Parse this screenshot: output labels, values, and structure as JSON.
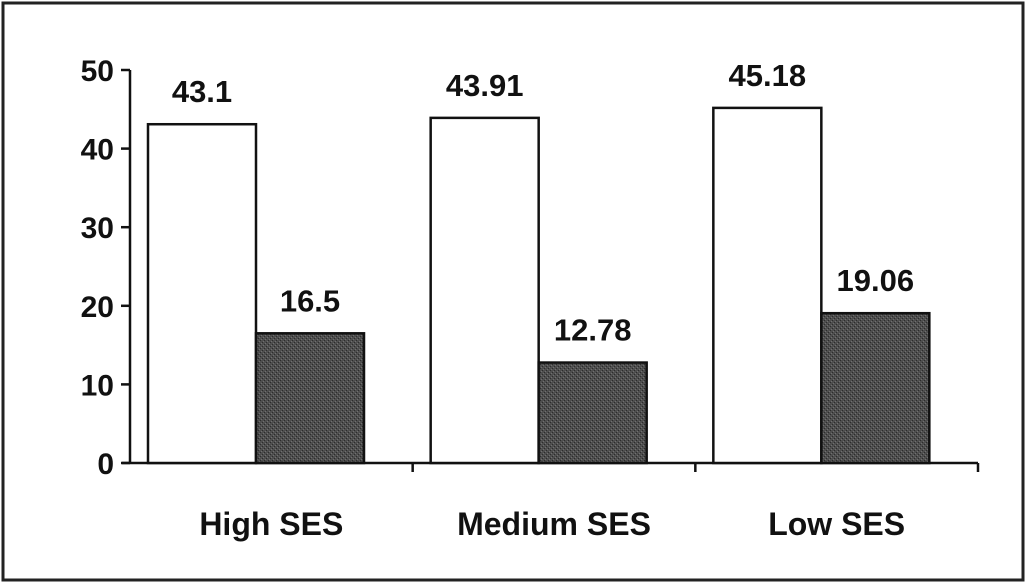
{
  "chart_data": {
    "type": "bar",
    "categories": [
      "High SES",
      "Medium SES",
      "Low SES"
    ],
    "series": [
      {
        "values": [
          43.1,
          43.91,
          45.18
        ],
        "color": "#ffffff",
        "label_text": [
          "43.1",
          "43.91",
          "45.18"
        ]
      },
      {
        "values": [
          16.5,
          12.78,
          19.06
        ],
        "color": "#4a4a4a",
        "label_text": [
          "16.5",
          "12.78",
          "19.06"
        ]
      }
    ],
    "yticks": [
      "0",
      "10",
      "20",
      "30",
      "40",
      "50"
    ],
    "ylim": [
      0,
      50
    ],
    "grid": false,
    "legend": "none"
  }
}
